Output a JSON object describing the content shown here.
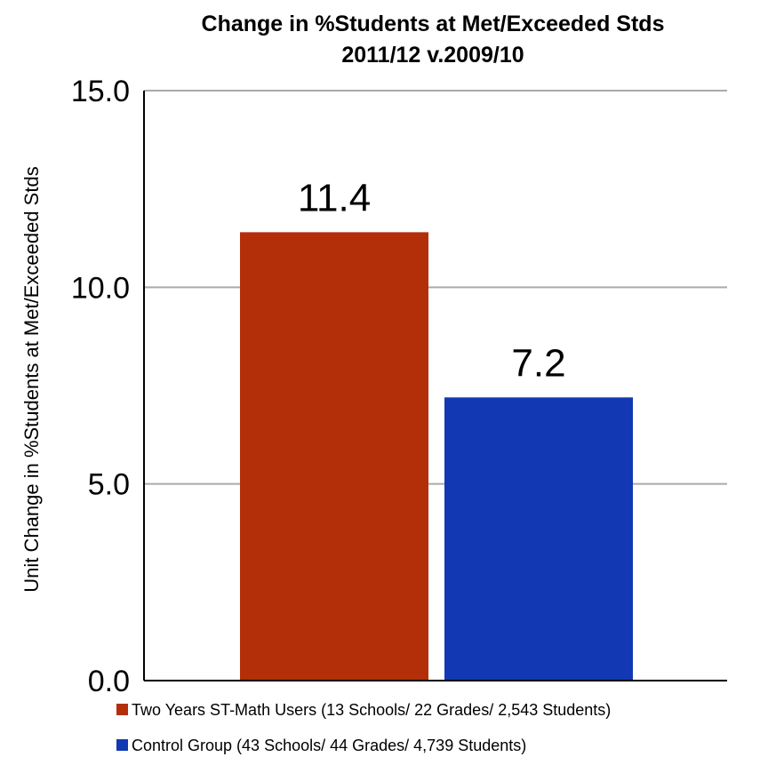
{
  "chart_data": {
    "type": "bar",
    "title": "Change in %Students at Met/Exceeded Stds",
    "subtitle": "2011/12 v.2009/10",
    "xlabel": "",
    "ylabel": "Unit Change in %Students at Met/Exceeded Stds",
    "ylim": [
      0,
      15
    ],
    "yticks": [
      "0.0",
      "5.0",
      "10.0",
      "15.0"
    ],
    "grid": true,
    "legend_position": "bottom",
    "series": [
      {
        "name": "Two Years ST-Math Users (13 Schools/ 22 Grades/ 2,543 Students)",
        "value": 11.4,
        "label": "11.4",
        "color": "#B32F0A"
      },
      {
        "name": "Control Group (43 Schools/ 44 Grades/ 4,739 Students)",
        "value": 7.2,
        "label": "7.2",
        "color": "#1238B3"
      }
    ],
    "colors": {
      "gridline": "#AAAAAA",
      "axis": "#000000",
      "text": "#000000"
    }
  }
}
